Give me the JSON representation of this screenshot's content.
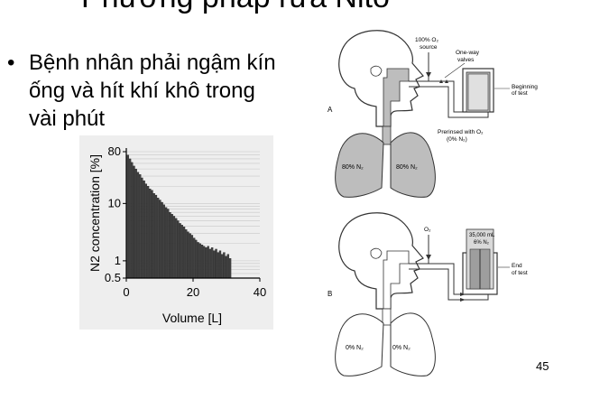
{
  "slide": {
    "title": "Phương pháp rửa Nito",
    "bullet_lines": [
      "Bệnh nhân phải ngậm kín",
      "ống và hít khí khô trong",
      "vài phút"
    ],
    "page_number": "45"
  },
  "diagram": {
    "panel_a": {
      "label": "A",
      "o2_source": [
        "100% O₂",
        "source"
      ],
      "valves": [
        "One-way",
        "valves"
      ],
      "state": [
        "Beginning",
        "of test"
      ],
      "prerinse": [
        "Prerinsed with O₂",
        "(0% N₂)"
      ],
      "lung_left": "80% N₂",
      "lung_right": "80% N₂"
    },
    "panel_b": {
      "label": "B",
      "o2": "O₂",
      "spirometer": [
        "35,000 mL",
        "6% N₂"
      ],
      "state": [
        "End",
        "of test"
      ],
      "lung_left": "0% N₂",
      "lung_right": "0% N₂"
    }
  },
  "chart_data": {
    "type": "bar",
    "xlabel": "Volume [L]",
    "ylabel": "N2 concentration [%]",
    "y_scale": "log",
    "ylim": [
      0.5,
      80
    ],
    "xlim": [
      0,
      40
    ],
    "y_ticks": [
      0.5,
      1,
      10,
      80
    ],
    "y_tick_labels": [
      "0.5",
      "1",
      "10",
      "80"
    ],
    "x_ticks": [
      0,
      20,
      40
    ],
    "x_tick_labels": [
      "0",
      "20",
      "40"
    ],
    "grid": "horizontal",
    "bar_width_L": 0.55,
    "x": [
      0.5,
      1.1,
      1.7,
      2.3,
      2.9,
      3.5,
      4.1,
      4.7,
      5.3,
      5.9,
      6.5,
      7.1,
      7.7,
      8.3,
      8.9,
      9.5,
      10.1,
      10.7,
      11.3,
      11.9,
      12.5,
      13.1,
      13.7,
      14.3,
      14.9,
      15.5,
      16.1,
      16.7,
      17.3,
      17.9,
      18.5,
      19.1,
      19.7,
      20.3,
      20.9,
      21.5,
      22.1,
      22.7,
      23.3,
      23.9,
      24.5,
      25.1,
      25.7,
      26.3,
      26.9,
      27.5,
      28.1,
      28.7,
      29.3,
      29.9,
      30.5,
      31.1
    ],
    "values": [
      70,
      60,
      52,
      45,
      40,
      35,
      32,
      28,
      25,
      22,
      20,
      18,
      17,
      15,
      14,
      12.5,
      11.5,
      10.5,
      9.5,
      8.5,
      8,
      7,
      6.5,
      6,
      5.5,
      5,
      4.5,
      4.2,
      3.9,
      3.5,
      3.2,
      3,
      2.8,
      2.5,
      2.3,
      2.1,
      2,
      1.9,
      1.8,
      1.7,
      1.8,
      1.6,
      1.7,
      1.5,
      1.6,
      1.4,
      1.5,
      1.3,
      1.4,
      1.2,
      1.3,
      1.1
    ]
  }
}
